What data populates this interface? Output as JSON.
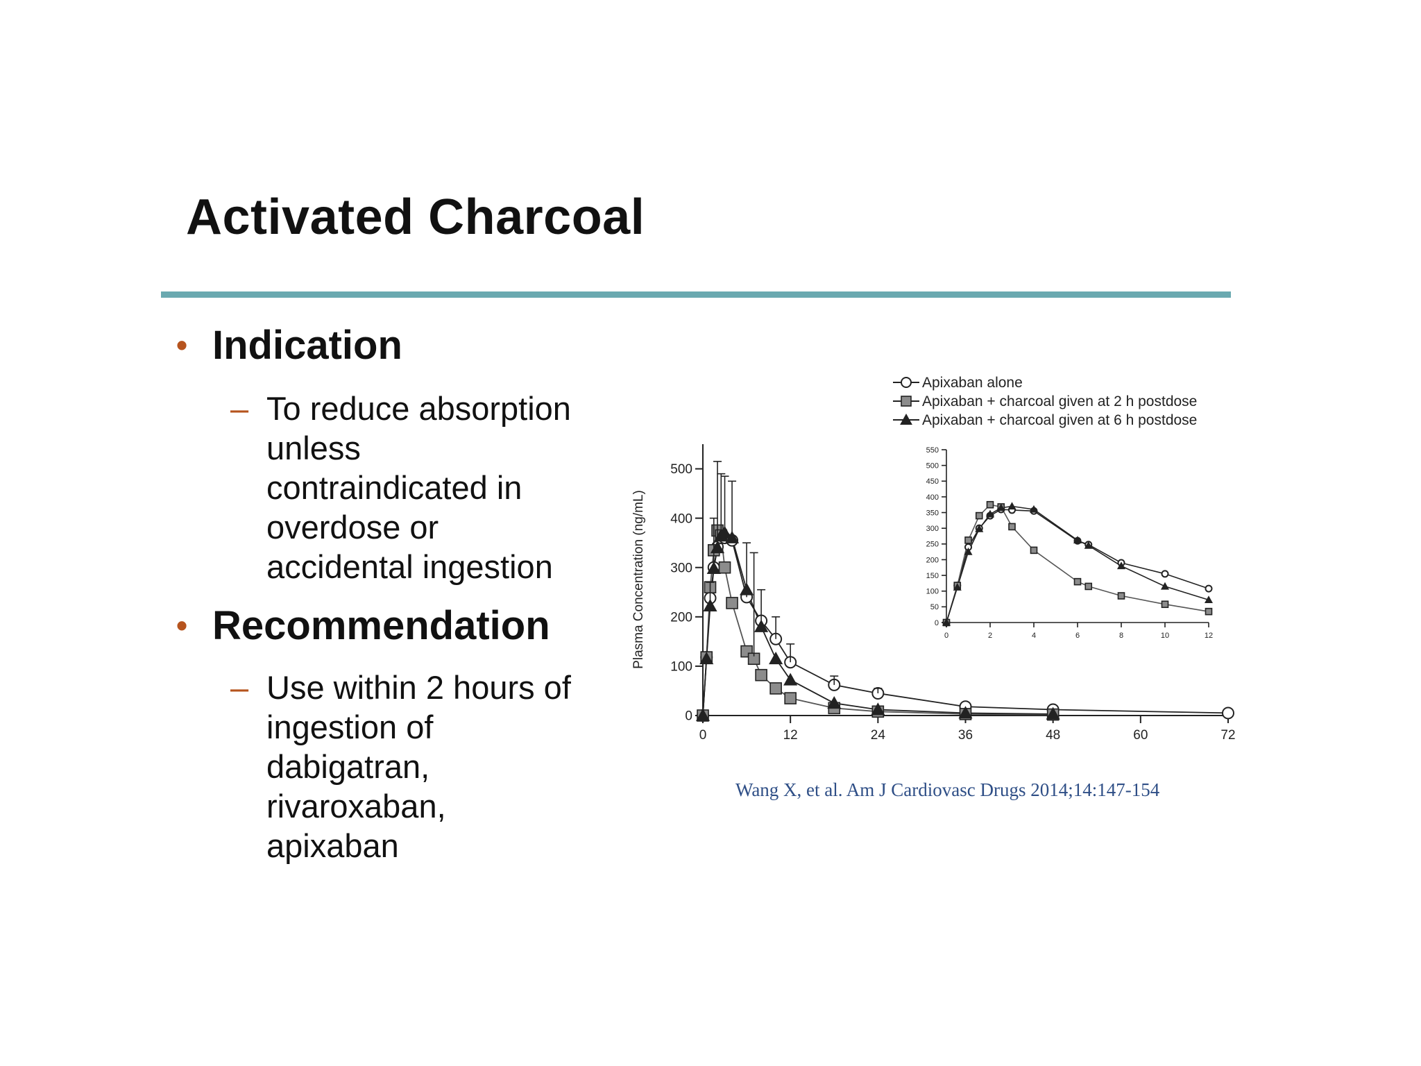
{
  "slide": {
    "title": "Activated Charcoal",
    "accent_color": "#6aa9b0",
    "bullet_color": "#b6541e",
    "bullets": [
      {
        "heading": "Indication",
        "sub_lines": [
          "To reduce absorption",
          "unless",
          "contraindicated in",
          "overdose or",
          "accidental ingestion"
        ]
      },
      {
        "heading": "Recommendation",
        "sub_lines": [
          "Use within 2 hours of",
          "ingestion of",
          "dabigatran,",
          "rivaroxaban,",
          "apixaban"
        ]
      }
    ],
    "citation": "Wang X, et al. Am J Cardiovasc Drugs 2014;14:147-154"
  },
  "chart_data": [
    {
      "type": "line",
      "ylabel": "Plasma Concentration (ng/mL)",
      "xlim": [
        0,
        72
      ],
      "ylim": [
        0,
        550
      ],
      "x_ticks": [
        "0",
        "12",
        "24",
        "36",
        "48",
        "60",
        "72"
      ],
      "y_ticks": [
        "0",
        "100",
        "200",
        "300",
        "400",
        "500"
      ],
      "legend": [
        "Apixaban alone",
        "Apixaban + charcoal given at 2 h postdose",
        "Apixaban + charcoal given at 6 h postdose"
      ],
      "legend_position": "top-right",
      "series": [
        {
          "name": "Apixaban alone",
          "marker": "circle-open",
          "x": [
            0,
            0.5,
            1,
            1.5,
            2,
            2.5,
            3,
            4,
            6,
            8,
            10,
            12,
            18,
            24,
            36,
            48,
            72
          ],
          "y": [
            0,
            118,
            238,
            300,
            342,
            360,
            360,
            355,
            240,
            192,
            155,
            108,
            62,
            45,
            18,
            12,
            5
          ]
        },
        {
          "name": "Apixaban + charcoal given at 2 h postdose",
          "marker": "square-filled",
          "x": [
            0,
            0.5,
            1,
            1.5,
            2,
            2.5,
            3,
            4,
            6,
            7,
            8,
            10,
            12,
            18,
            24,
            36,
            48
          ],
          "y": [
            0,
            118,
            260,
            335,
            375,
            365,
            300,
            228,
            130,
            115,
            82,
            55,
            35,
            15,
            8,
            3,
            2
          ]
        },
        {
          "name": "Apixaban + charcoal given at 6 h postdose",
          "marker": "triangle-filled",
          "x": [
            0,
            0.5,
            1,
            1.5,
            2,
            2.5,
            3,
            4,
            6,
            8,
            10,
            12,
            18,
            24,
            36,
            48
          ],
          "y": [
            0,
            115,
            222,
            298,
            340,
            365,
            370,
            360,
            255,
            180,
            115,
            72,
            25,
            12,
            5,
            3
          ]
        }
      ]
    },
    {
      "type": "line",
      "xlim": [
        0,
        12
      ],
      "ylim": [
        0,
        550
      ],
      "x_ticks": [
        "0",
        "2",
        "4",
        "6",
        "8",
        "10",
        "12"
      ],
      "y_ticks": [
        "0",
        "50",
        "100",
        "150",
        "200",
        "250",
        "300",
        "350",
        "400",
        "450",
        "500",
        "550"
      ],
      "series": [
        {
          "name": "Apixaban alone",
          "marker": "circle-open",
          "x": [
            0,
            0.5,
            1,
            1.5,
            2,
            2.5,
            3,
            4,
            6,
            6.5,
            8,
            10,
            12
          ],
          "y": [
            0,
            118,
            240,
            300,
            340,
            360,
            358,
            355,
            260,
            248,
            190,
            155,
            108
          ]
        },
        {
          "name": "Apixaban + charcoal given at 2 h postdose",
          "marker": "square-filled",
          "x": [
            0,
            0.5,
            1,
            1.5,
            2,
            2.5,
            3,
            4,
            6,
            6.5,
            8,
            10,
            12
          ],
          "y": [
            0,
            118,
            262,
            340,
            375,
            368,
            305,
            230,
            130,
            115,
            85,
            58,
            35
          ]
        },
        {
          "name": "Apixaban + charcoal given at 6 h postdose",
          "marker": "triangle-filled",
          "x": [
            0,
            0.5,
            1,
            1.5,
            2,
            2.5,
            3,
            4,
            6,
            6.5,
            8,
            10,
            12
          ],
          "y": [
            0,
            112,
            225,
            298,
            345,
            365,
            370,
            360,
            262,
            245,
            180,
            115,
            72
          ]
        }
      ]
    }
  ]
}
